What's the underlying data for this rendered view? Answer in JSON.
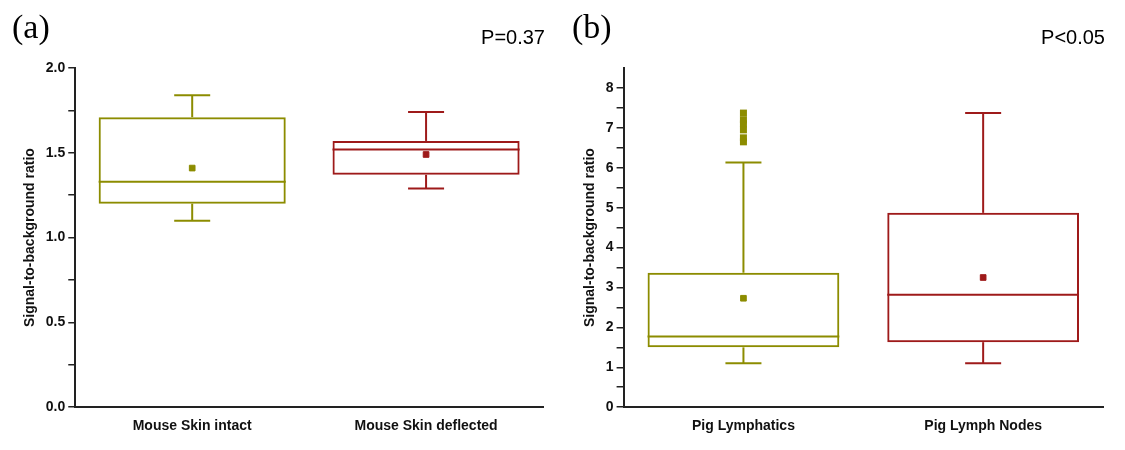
{
  "chart_data": [
    {
      "type": "box",
      "categories": [
        "Mouse Skin intact",
        "Mouse Skin deflected"
      ],
      "ylabel": "Signal-to-background ratio",
      "ylim": [
        0,
        2
      ],
      "yticks": [
        {
          "value": 0,
          "label": "0.0"
        },
        {
          "value": 0.25,
          "label": null
        },
        0.5,
        {
          "value": 0.75,
          "label": null
        },
        {
          "value": 1,
          "label": "1.0"
        },
        {
          "value": 1.25,
          "label": null
        },
        1.5,
        {
          "value": 1.75,
          "label": null
        },
        {
          "value": 2,
          "label": "2.0"
        }
      ],
      "colors": [
        "#8c8c00",
        "#9e1a1a"
      ],
      "boxes": [
        {
          "low": 1.1,
          "q1": 1.2,
          "median": 1.33,
          "q3": 1.71,
          "high": 1.84,
          "mean": 1.41
        },
        {
          "low": 1.29,
          "q1": 1.37,
          "median": 1.52,
          "q3": 1.57,
          "high": 1.74,
          "mean": 1.49
        }
      ],
      "annotations": [
        "(a)",
        "P=0.37"
      ]
    },
    {
      "type": "box",
      "categories": [
        "Pig Lymphatics",
        "Pig Lymph Nodes"
      ],
      "ylabel": "Signal-to-background ratio",
      "ylim": [
        0,
        8.5
      ],
      "yticks": [
        0,
        {
          "value": 0.5,
          "label": null
        },
        1,
        {
          "value": 1.5,
          "label": null
        },
        2,
        {
          "value": 2.5,
          "label": null
        },
        3,
        {
          "value": 3.5,
          "label": null
        },
        4,
        {
          "value": 4.5,
          "label": null
        },
        5,
        {
          "value": 5.5,
          "label": null
        },
        6,
        {
          "value": 6.5,
          "label": null
        },
        7,
        {
          "value": 7.5,
          "label": null
        },
        8
      ],
      "colors": [
        "#8c8c00",
        "#9e1a1a"
      ],
      "boxes": [
        {
          "low": 1.1,
          "q1": 1.5,
          "median": 1.77,
          "q3": 3.37,
          "high": 6.13,
          "mean": 2.73,
          "outliers": [
            6.65,
            6.75,
            6.95,
            7.1,
            7.2,
            7.37
          ]
        },
        {
          "low": 1.1,
          "q1": 1.63,
          "median": 2.82,
          "q3": 4.87,
          "high": 7.37,
          "mean": 3.25
        }
      ],
      "annotations": [
        "(b)",
        "P<0.05"
      ]
    }
  ]
}
